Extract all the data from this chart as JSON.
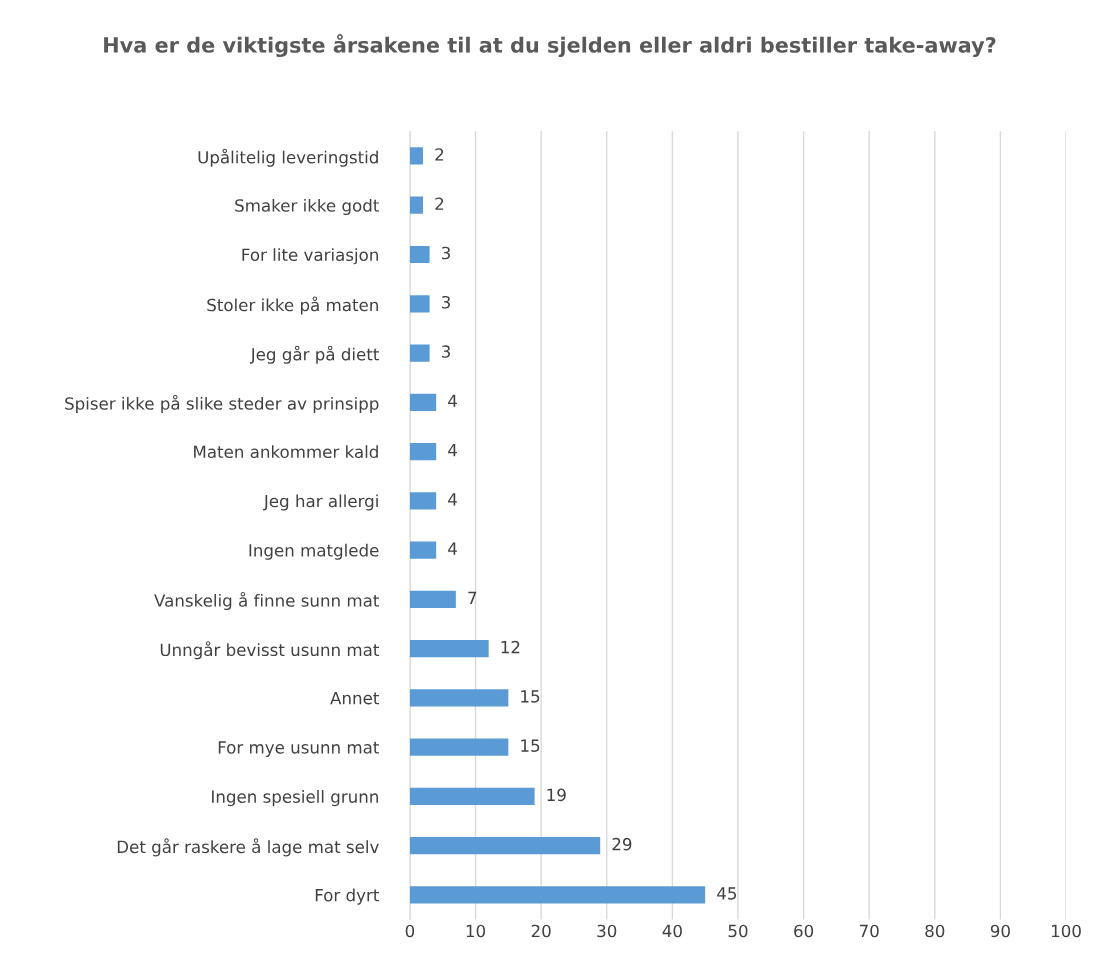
{
  "chart_data": {
    "type": "bar",
    "orientation": "horizontal",
    "title": "Hva er de viktigste årsakene til at du sjelden eller aldri bestiller take-away?",
    "categories": [
      "Upålitelig leveringstid",
      "Smaker ikke godt",
      "For lite variasjon",
      "Stoler ikke på maten",
      "Jeg går på diett",
      "Spiser ikke på slike steder av prinsipp",
      "Maten ankommer kald",
      "Jeg har allergi",
      "Ingen matglede",
      "Vanskelig å finne sunn mat",
      "Unngår bevisst usunn mat",
      "Annet",
      "For mye usunn mat",
      "Ingen spesiell grunn",
      "Det går raskere å lage mat selv",
      "For dyrt"
    ],
    "values": [
      2,
      2,
      3,
      3,
      3,
      4,
      4,
      4,
      4,
      7,
      12,
      15,
      15,
      19,
      29,
      45
    ],
    "color": "#5b9bd5",
    "xlim": [
      0,
      100
    ],
    "xticks": [
      0,
      10,
      20,
      30,
      40,
      50,
      60,
      70,
      80,
      90,
      100
    ],
    "grid": "x",
    "data_labels": true
  }
}
